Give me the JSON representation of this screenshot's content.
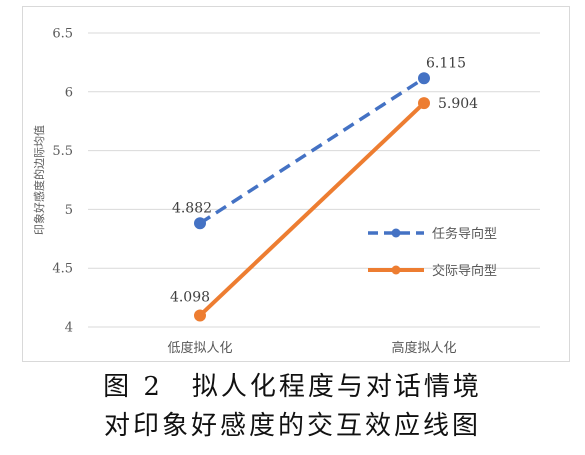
{
  "chart_data": {
    "type": "line",
    "ylabel": "印象好感度的边际均值",
    "categories": [
      "低度拟人化",
      "高度拟人化"
    ],
    "ylim": [
      4,
      6.5
    ],
    "yticks": [
      "4",
      "4.5",
      "5",
      "5.5",
      "6",
      "6.5"
    ],
    "grid": true,
    "legend_position": "right",
    "series": [
      {
        "name": "任务导向型",
        "values": [
          4.882,
          6.115
        ],
        "labels": [
          "4.882",
          "6.115"
        ],
        "color": "#4472C4",
        "dash": true
      },
      {
        "name": "交际导向型",
        "values": [
          4.098,
          5.904
        ],
        "labels": [
          "4.098",
          "5.904"
        ],
        "color": "#ED7D31",
        "dash": false
      }
    ]
  },
  "caption": {
    "line1": "图 2　拟人化程度与对话情境",
    "line2": "对印象好感度的交互效应线图"
  }
}
